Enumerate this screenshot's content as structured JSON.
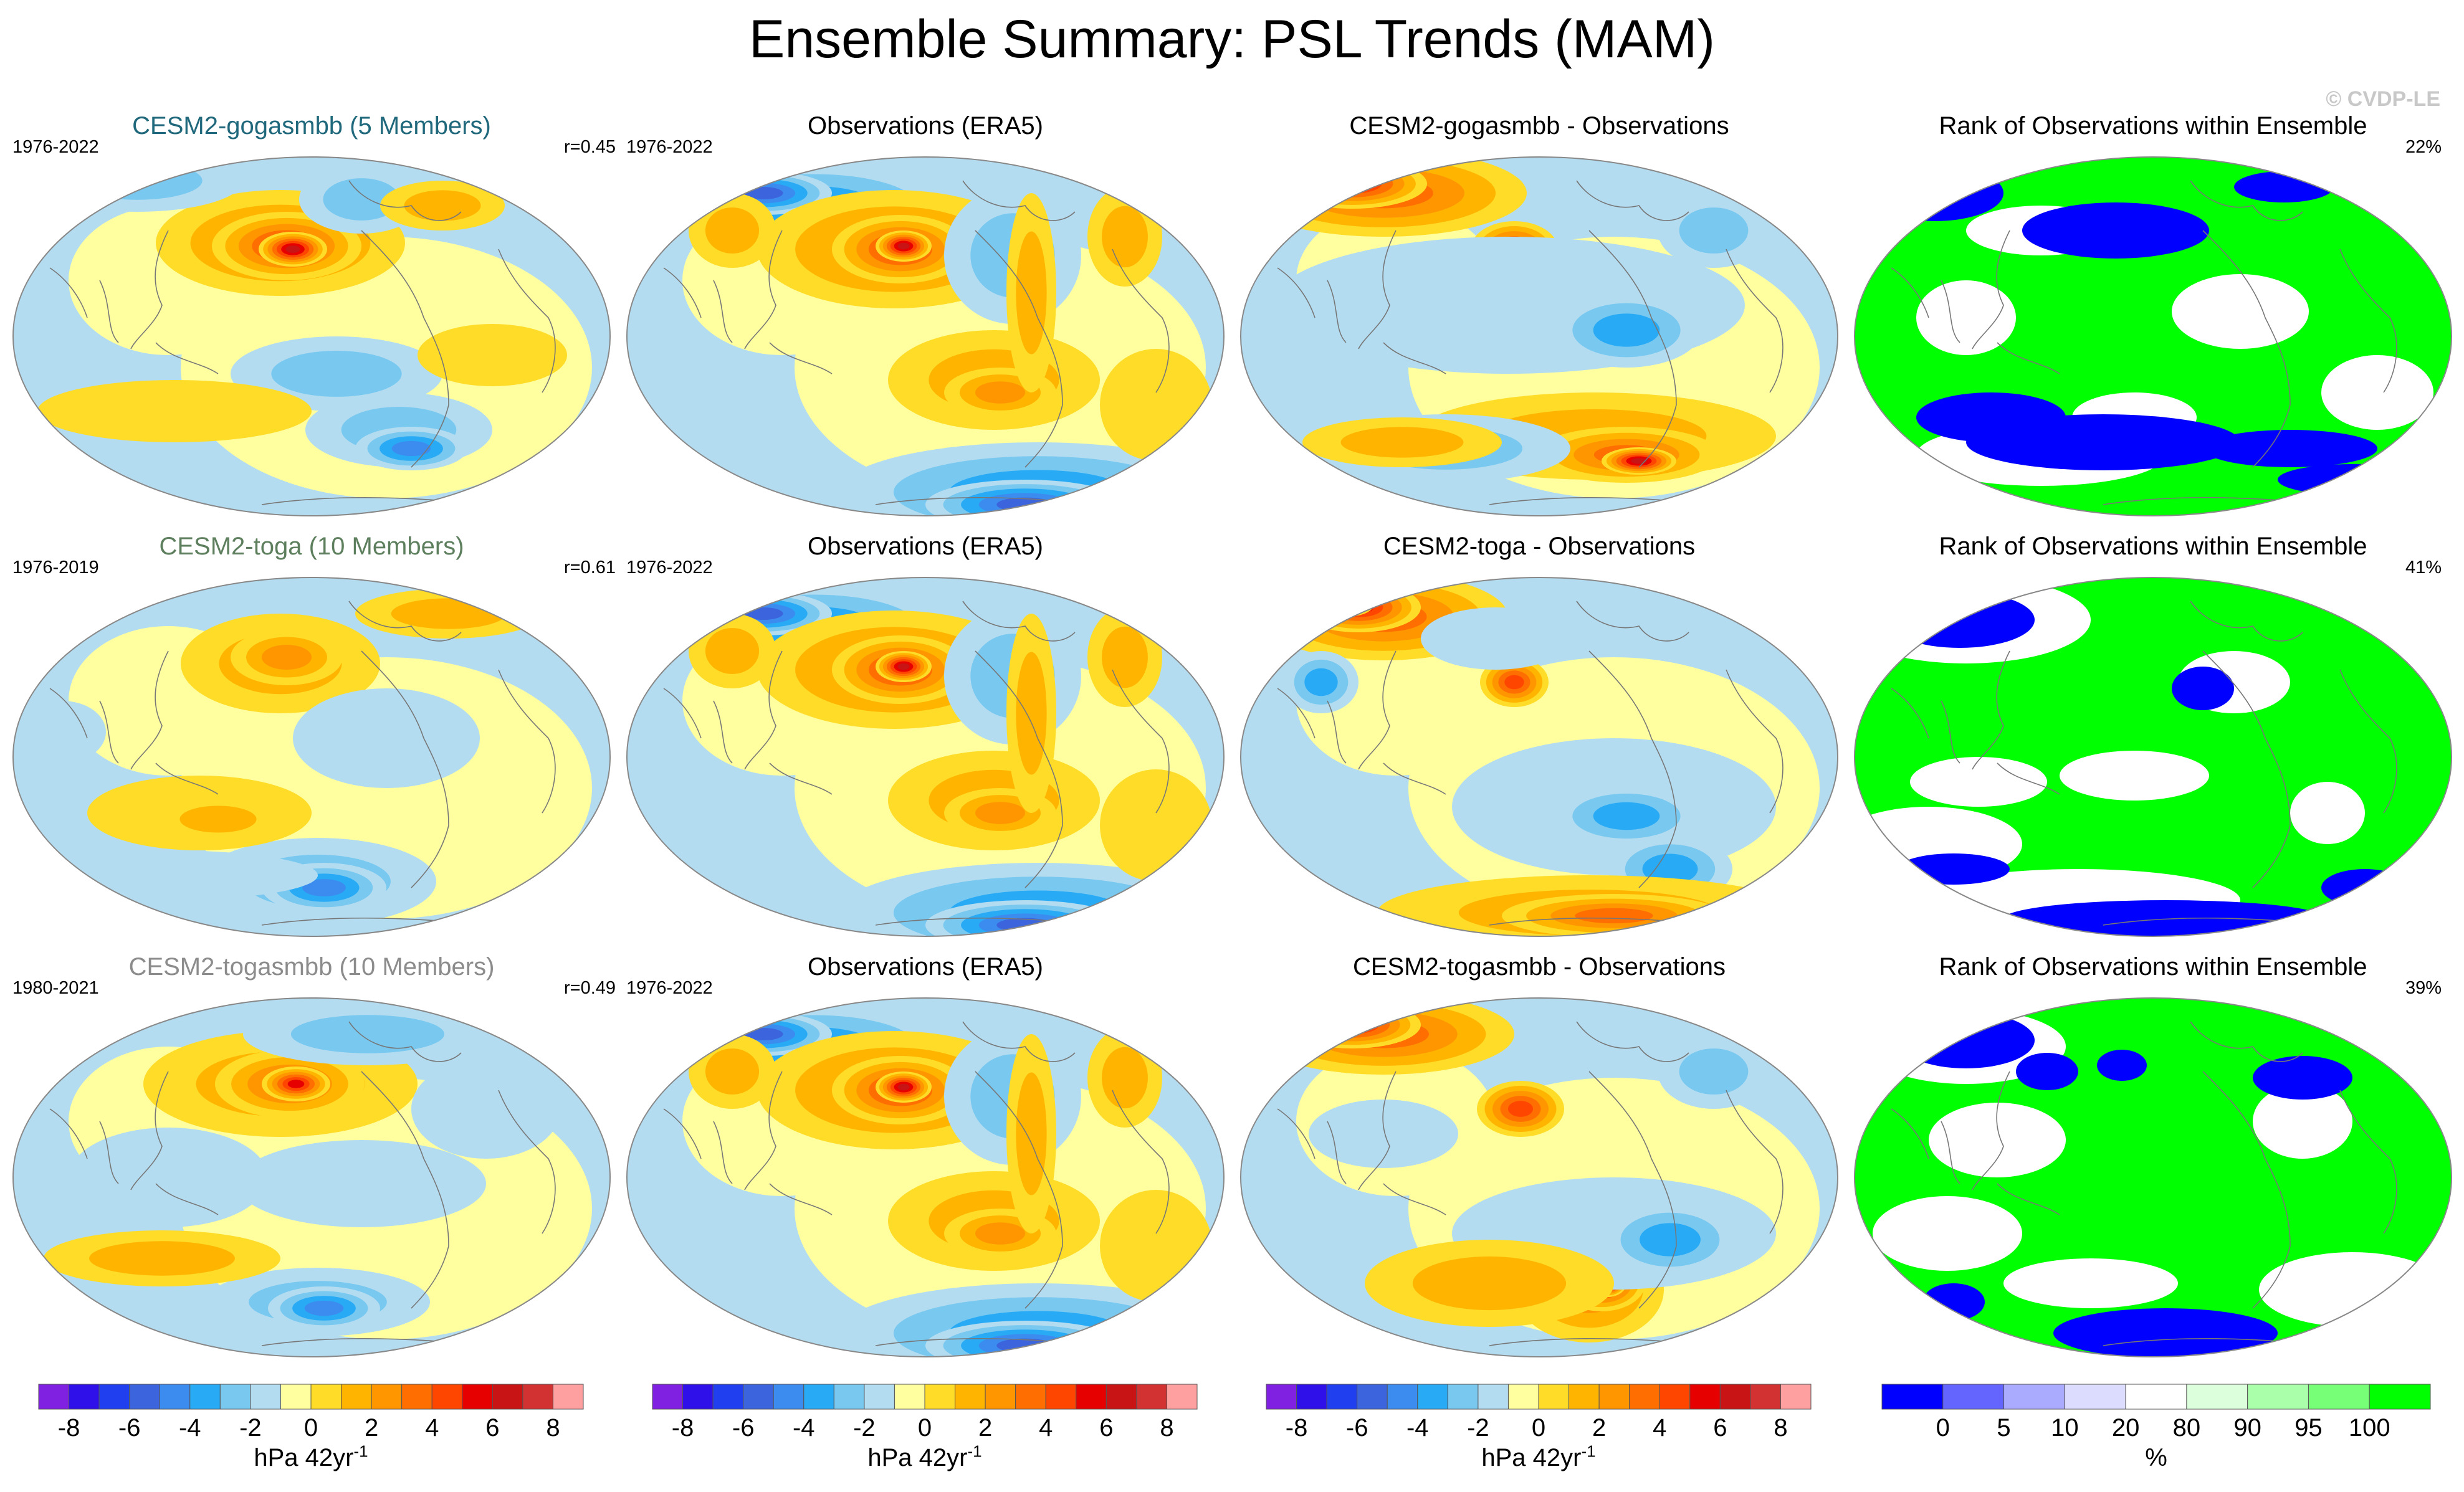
{
  "title": "Ensemble Summary: PSL Trends (MAM)",
  "copyright": "© CVDP-LE",
  "rows": [
    {
      "model": {
        "title": "CESM2-gogasmbb (5 Members)",
        "title_color": "#20687c",
        "years": "1976-2022",
        "r": "r=0.45"
      },
      "obs": {
        "title": "Observations (ERA5)",
        "years": "1976-2022"
      },
      "diff": {
        "title": "CESM2-gogasmbb - Observations"
      },
      "rank": {
        "title": "Rank of Observations within Ensemble",
        "pct": "22%"
      }
    },
    {
      "model": {
        "title": "CESM2-toga (10 Members)",
        "title_color": "#5d7f5d",
        "years": "1976-2019",
        "r": "r=0.61"
      },
      "obs": {
        "title": "Observations (ERA5)",
        "years": "1976-2022"
      },
      "diff": {
        "title": "CESM2-toga - Observations"
      },
      "rank": {
        "title": "Rank of Observations within Ensemble",
        "pct": "41%"
      }
    },
    {
      "model": {
        "title": "CESM2-togasmbb (10 Members)",
        "title_color": "#8c8c8c",
        "years": "1980-2021",
        "r": "r=0.49"
      },
      "obs": {
        "title": "Observations (ERA5)",
        "years": "1976-2022"
      },
      "diff": {
        "title": "CESM2-togasmbb - Observations"
      },
      "rank": {
        "title": "Rank of Observations within Ensemble",
        "pct": "39%"
      }
    }
  ],
  "chart_data": {
    "type": "heatmap",
    "projection": "global map (Robinson-like)",
    "variable": "PSL trends, MAM",
    "colorbar_trend": {
      "colors": [
        "#8020e0",
        "#3010e8",
        "#2040f0",
        "#3c64dc",
        "#3c8cf0",
        "#28aaf5",
        "#78c8f0",
        "#b4dcf0",
        "#ffffa0",
        "#ffdc28",
        "#ffb400",
        "#ff9600",
        "#ff6e00",
        "#ff4600",
        "#e60000",
        "#c81414",
        "#d23232",
        "#ffa0a0"
      ],
      "ticks": [
        "-8",
        "-6",
        "-4",
        "-2",
        "0",
        "2",
        "4",
        "6",
        "8"
      ],
      "tick_values": [
        -8,
        -6,
        -4,
        -2,
        0,
        2,
        4,
        6,
        8
      ],
      "range": [
        -9,
        9
      ],
      "label": "hPa 42yr",
      "label_exp": "-1"
    },
    "colorbar_rank": {
      "colors": [
        "#0000ff",
        "#6464ff",
        "#aaaaff",
        "#dcdcff",
        "#ffffff",
        "#dcffdc",
        "#aaffaa",
        "#78ff78",
        "#00ff00"
      ],
      "ticks": [
        "0",
        "5",
        "10",
        "20",
        "80",
        "90",
        "95",
        "100"
      ],
      "label": "%"
    }
  }
}
